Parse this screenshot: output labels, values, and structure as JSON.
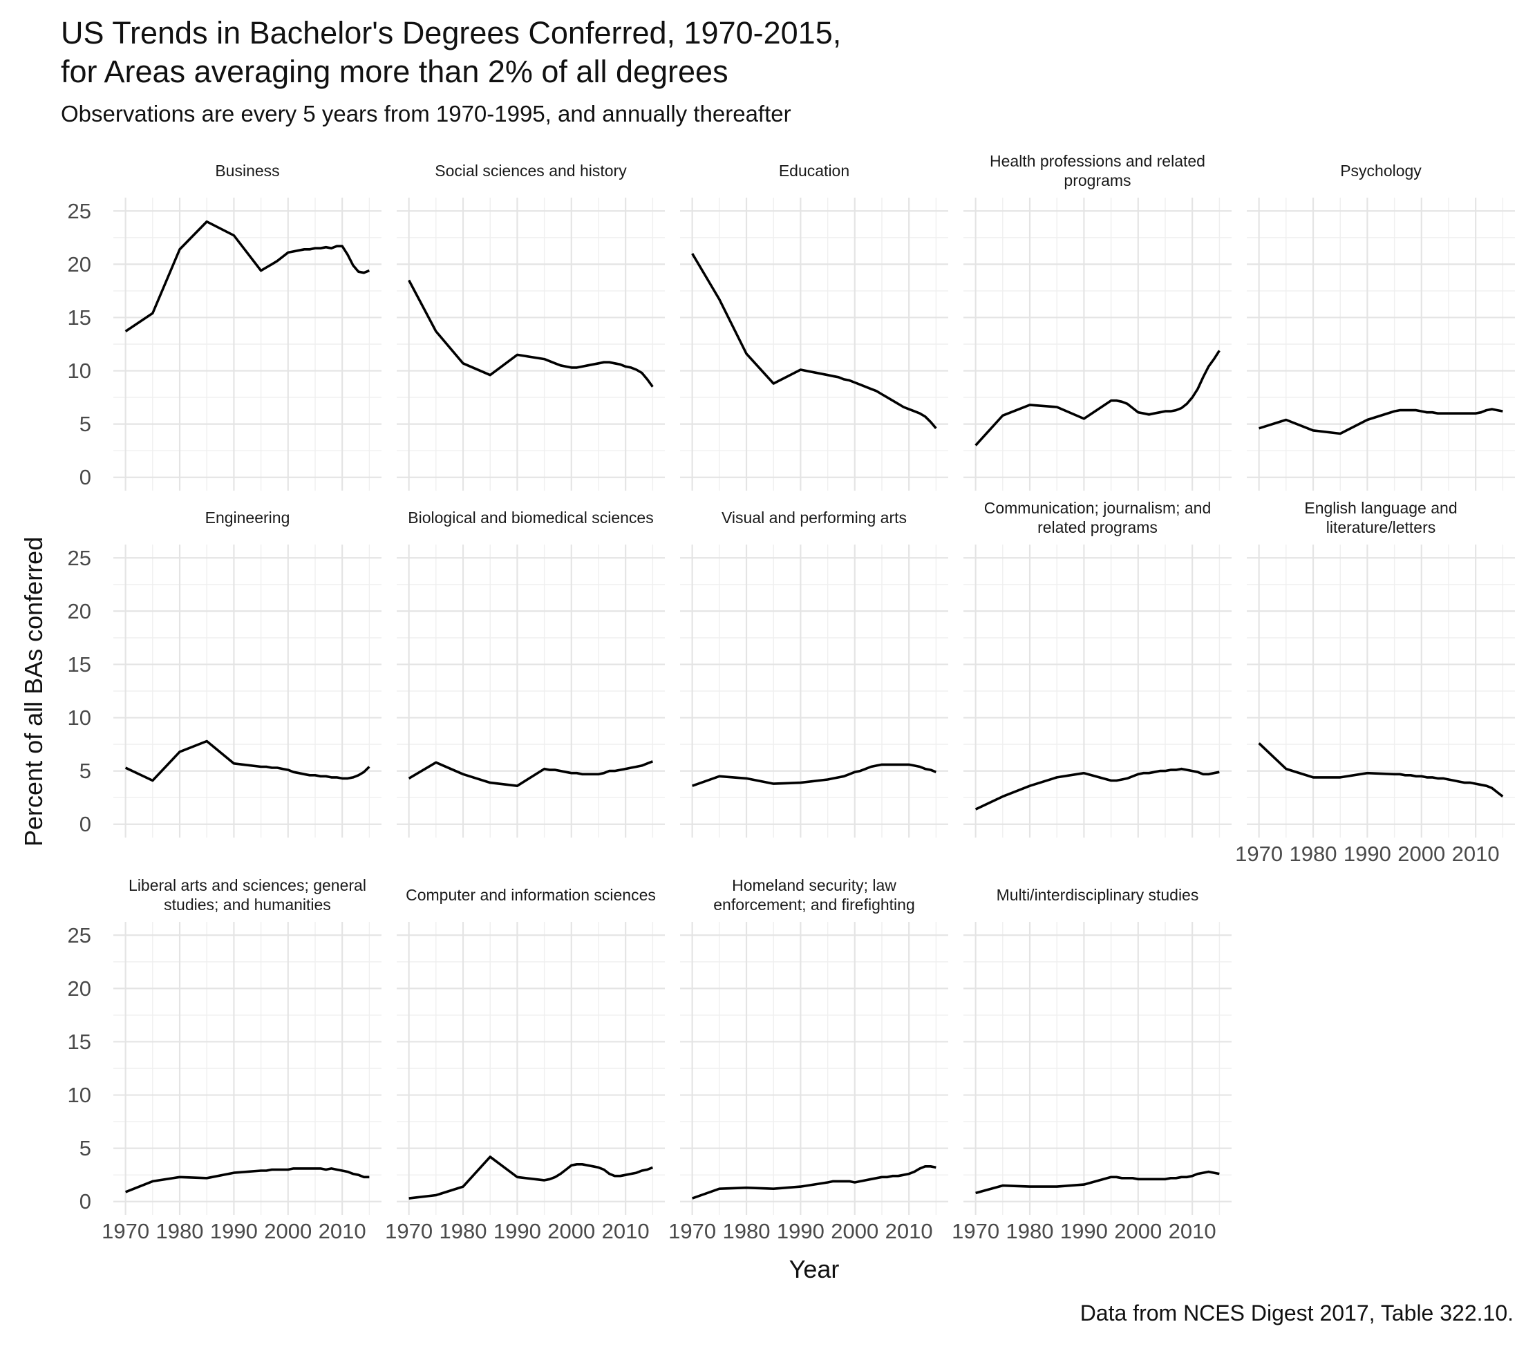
{
  "header": {
    "title": "US Trends in Bachelor's Degrees Conferred, 1970-2015,\nfor Areas averaging more than 2% of all degrees",
    "subtitle": "Observations are every 5 years from 1970-1995, and annually thereafter"
  },
  "axes": {
    "y_title": "Percent of all BAs conferred",
    "x_title": "Year",
    "y_ticks": [
      25,
      20,
      15,
      10,
      5,
      0
    ],
    "x_ticks": [
      1970,
      1980,
      1990,
      2000,
      2010
    ]
  },
  "caption": "Data from NCES Digest 2017, Table 322.10.",
  "chart_data": {
    "type": "line",
    "layout": {
      "facet_rows": 3,
      "facet_cols": 5,
      "grid": true,
      "legend": "none"
    },
    "xlim": [
      1970,
      2015
    ],
    "ylim": [
      0,
      25
    ],
    "xlabel": "Year",
    "ylabel": "Percent of all BAs conferred",
    "x": [
      1970,
      1975,
      1980,
      1985,
      1990,
      1995,
      1996,
      1997,
      1998,
      1999,
      2000,
      2001,
      2002,
      2003,
      2004,
      2005,
      2006,
      2007,
      2008,
      2009,
      2010,
      2011,
      2012,
      2013,
      2014,
      2015
    ],
    "series": [
      {
        "name": "Business",
        "values": [
          13.7,
          15.4,
          21.4,
          24.0,
          22.7,
          19.4,
          19.7,
          20.0,
          20.3,
          20.7,
          21.1,
          21.2,
          21.3,
          21.4,
          21.4,
          21.5,
          21.5,
          21.6,
          21.5,
          21.7,
          21.7,
          20.9,
          19.9,
          19.3,
          19.2,
          19.4
        ]
      },
      {
        "name": "Social sciences and history",
        "values": [
          18.5,
          13.7,
          10.7,
          9.6,
          11.5,
          11.1,
          10.9,
          10.7,
          10.5,
          10.4,
          10.3,
          10.3,
          10.4,
          10.5,
          10.6,
          10.7,
          10.8,
          10.8,
          10.7,
          10.6,
          10.4,
          10.3,
          10.1,
          9.8,
          9.2,
          8.5
        ]
      },
      {
        "name": "Education",
        "values": [
          21.0,
          16.7,
          11.6,
          8.8,
          10.1,
          9.6,
          9.5,
          9.4,
          9.2,
          9.1,
          8.9,
          8.7,
          8.5,
          8.3,
          8.1,
          7.8,
          7.5,
          7.2,
          6.9,
          6.6,
          6.4,
          6.2,
          6.0,
          5.7,
          5.2,
          4.6
        ]
      },
      {
        "name": "Health professions and related\nprograms",
        "values": [
          3.0,
          5.8,
          6.8,
          6.6,
          5.5,
          7.2,
          7.2,
          7.1,
          6.9,
          6.5,
          6.1,
          6.0,
          5.9,
          6.0,
          6.1,
          6.2,
          6.2,
          6.3,
          6.5,
          6.9,
          7.5,
          8.3,
          9.4,
          10.4,
          11.1,
          11.9
        ]
      },
      {
        "name": "Psychology",
        "values": [
          4.6,
          5.4,
          4.4,
          4.1,
          5.4,
          6.2,
          6.3,
          6.3,
          6.3,
          6.3,
          6.2,
          6.1,
          6.1,
          6.0,
          6.0,
          6.0,
          6.0,
          6.0,
          6.0,
          6.0,
          6.0,
          6.1,
          6.3,
          6.4,
          6.3,
          6.2
        ]
      },
      {
        "name": "Engineering",
        "values": [
          5.3,
          4.1,
          6.8,
          7.8,
          5.7,
          5.4,
          5.4,
          5.3,
          5.3,
          5.2,
          5.1,
          4.9,
          4.8,
          4.7,
          4.6,
          4.6,
          4.5,
          4.5,
          4.4,
          4.4,
          4.3,
          4.3,
          4.4,
          4.6,
          4.9,
          5.4
        ]
      },
      {
        "name": "Biological and biomedical sciences",
        "values": [
          4.3,
          5.8,
          4.7,
          3.9,
          3.6,
          5.2,
          5.1,
          5.1,
          5.0,
          4.9,
          4.8,
          4.8,
          4.7,
          4.7,
          4.7,
          4.7,
          4.8,
          5.0,
          5.0,
          5.1,
          5.2,
          5.3,
          5.4,
          5.5,
          5.7,
          5.9
        ]
      },
      {
        "name": "Visual and performing arts",
        "values": [
          3.6,
          4.5,
          4.3,
          3.8,
          3.9,
          4.2,
          4.3,
          4.4,
          4.5,
          4.7,
          4.9,
          5.0,
          5.2,
          5.4,
          5.5,
          5.6,
          5.6,
          5.6,
          5.6,
          5.6,
          5.6,
          5.5,
          5.4,
          5.2,
          5.1,
          4.9
        ]
      },
      {
        "name": "Communication; journalism; and\nrelated programs",
        "values": [
          1.4,
          2.6,
          3.6,
          4.4,
          4.8,
          4.1,
          4.1,
          4.2,
          4.3,
          4.5,
          4.7,
          4.8,
          4.8,
          4.9,
          5.0,
          5.0,
          5.1,
          5.1,
          5.2,
          5.1,
          5.0,
          4.9,
          4.7,
          4.7,
          4.8,
          4.9
        ]
      },
      {
        "name": "English language and\nliterature/letters",
        "values": [
          7.6,
          5.2,
          4.4,
          4.4,
          4.8,
          4.7,
          4.7,
          4.6,
          4.6,
          4.5,
          4.5,
          4.4,
          4.4,
          4.3,
          4.3,
          4.2,
          4.1,
          4.0,
          3.9,
          3.9,
          3.8,
          3.7,
          3.6,
          3.4,
          3.0,
          2.6
        ]
      },
      {
        "name": "Liberal arts and sciences; general\nstudies; and humanities",
        "values": [
          0.9,
          1.9,
          2.3,
          2.2,
          2.7,
          2.9,
          2.9,
          3.0,
          3.0,
          3.0,
          3.0,
          3.1,
          3.1,
          3.1,
          3.1,
          3.1,
          3.1,
          3.0,
          3.1,
          3.0,
          2.9,
          2.8,
          2.6,
          2.5,
          2.3,
          2.3
        ]
      },
      {
        "name": "Computer and information sciences",
        "values": [
          0.3,
          0.6,
          1.4,
          4.2,
          2.3,
          2.0,
          2.1,
          2.3,
          2.6,
          3.0,
          3.4,
          3.5,
          3.5,
          3.4,
          3.3,
          3.2,
          3.0,
          2.6,
          2.4,
          2.4,
          2.5,
          2.6,
          2.7,
          2.9,
          3.0,
          3.2
        ]
      },
      {
        "name": "Homeland security; law\nenforcement; and firefighting",
        "values": [
          0.3,
          1.2,
          1.3,
          1.2,
          1.4,
          1.8,
          1.9,
          1.9,
          1.9,
          1.9,
          1.8,
          1.9,
          2.0,
          2.1,
          2.2,
          2.3,
          2.3,
          2.4,
          2.4,
          2.5,
          2.6,
          2.8,
          3.1,
          3.3,
          3.3,
          3.2
        ]
      },
      {
        "name": "Multi/interdisciplinary studies",
        "values": [
          0.8,
          1.5,
          1.4,
          1.4,
          1.6,
          2.3,
          2.3,
          2.2,
          2.2,
          2.2,
          2.1,
          2.1,
          2.1,
          2.1,
          2.1,
          2.1,
          2.2,
          2.2,
          2.3,
          2.3,
          2.4,
          2.6,
          2.7,
          2.8,
          2.7,
          2.6
        ]
      }
    ],
    "colors": {
      "line": "#000000",
      "grid_major": "#e4e4e4",
      "grid_minor": "#efefef",
      "tick_text": "#4a4a4a",
      "strip_text": "#1a1a1a",
      "background": "#ffffff"
    }
  }
}
